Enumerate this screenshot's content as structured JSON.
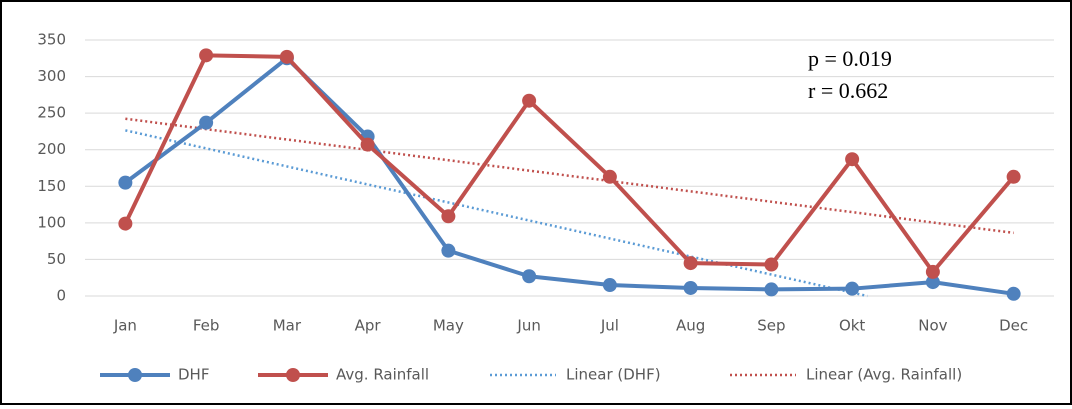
{
  "chart_data": {
    "type": "line",
    "categories": [
      "Jan",
      "Feb",
      "Mar",
      "Apr",
      "May",
      "Jun",
      "Jul",
      "Aug",
      "Sep",
      "Okt",
      "Nov",
      "Dec"
    ],
    "series": [
      {
        "name": "DHF",
        "color": "#4f81bd",
        "values": [
          155,
          237,
          325,
          218,
          62,
          27,
          15,
          11,
          9,
          10,
          19,
          3
        ],
        "trendline": {
          "name": "Linear (DHF)",
          "color": "#5b9bd5"
        }
      },
      {
        "name": "Avg. Rainfall",
        "color": "#c0504d",
        "values": [
          99,
          329,
          327,
          207,
          109,
          267,
          163,
          45,
          43,
          187,
          33,
          163
        ],
        "trendline": {
          "name": "Linear (Avg. Rainfall)",
          "color": "#c0504d"
        }
      }
    ],
    "ylim": [
      0,
      350
    ],
    "yticks": [
      0,
      50,
      100,
      150,
      200,
      250,
      300,
      350
    ],
    "grid": true,
    "annotations": [
      "p = 0.019",
      "r = 0.662"
    ],
    "legend": "bottom"
  }
}
